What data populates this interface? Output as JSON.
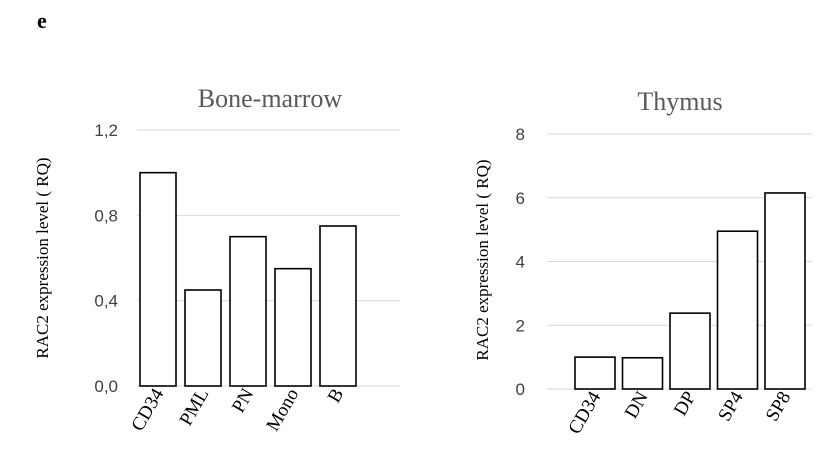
{
  "panel_label": "e",
  "chart_data": [
    {
      "type": "bar",
      "title": "Bone-marrow",
      "xlabel": "",
      "ylabel": "RAC2 expression level ( RQ)",
      "categories": [
        "CD34",
        "PML",
        "PN",
        "Mono",
        "B"
      ],
      "values": [
        1.0,
        0.45,
        0.7,
        0.55,
        0.75
      ],
      "ylim": [
        0,
        1.2
      ],
      "yticks": [
        0,
        0.4,
        0.8,
        1.2
      ],
      "ytick_labels": [
        "0,0",
        "0,4",
        "0,8",
        "1,2"
      ],
      "grid": true,
      "legend": "none"
    },
    {
      "type": "bar",
      "title": "Thymus",
      "xlabel": "",
      "ylabel": "RAC2 expression level ( RQ)",
      "categories": [
        "CD34",
        "DN",
        "DP",
        "SP4",
        "SP8"
      ],
      "values": [
        1.0,
        0.98,
        2.38,
        4.95,
        6.15
      ],
      "ylim": [
        0,
        8
      ],
      "yticks": [
        0,
        2,
        4,
        6,
        8
      ],
      "ytick_labels": [
        "0",
        "2",
        "4",
        "6",
        "8"
      ],
      "grid": true,
      "legend": "none"
    }
  ]
}
